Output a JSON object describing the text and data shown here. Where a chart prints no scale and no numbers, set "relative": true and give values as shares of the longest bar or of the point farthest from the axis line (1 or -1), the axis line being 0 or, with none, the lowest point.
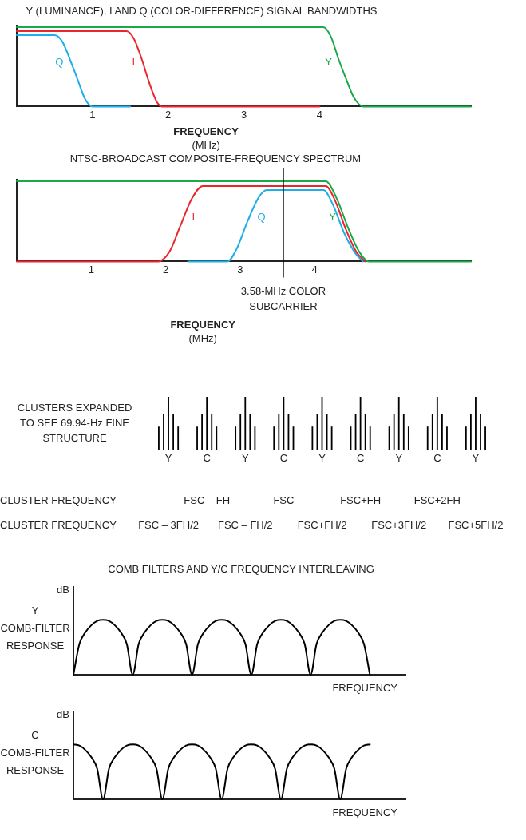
{
  "chart_data": [
    {
      "type": "line",
      "title": "Y (LUMINANCE), I AND Q (COLOR-DIFFERENCE) SIGNAL BANDWIDTHS",
      "xlabel": "FREQUENCY (MHz)",
      "relative": true,
      "marker": "none",
      "tick_labels": "x",
      "xlim": [
        0,
        6
      ],
      "xticks": [
        1,
        2,
        3,
        4
      ],
      "series": [
        {
          "name": "Q",
          "color": "#1eaee8",
          "x": [
            0,
            0.5,
            0.6,
            0.7,
            0.8,
            0.9,
            1.0,
            1.5
          ],
          "values": [
            0.9,
            0.9,
            0.82,
            0.6,
            0.35,
            0.1,
            0,
            0
          ]
        },
        {
          "name": "I",
          "color": "#e8282d",
          "x": [
            0,
            1.45,
            1.55,
            1.65,
            1.75,
            1.85,
            1.92,
            4.0
          ],
          "values": [
            0.95,
            0.95,
            0.85,
            0.6,
            0.3,
            0.06,
            0,
            0
          ]
        },
        {
          "name": "Y",
          "color": "#1aa84a",
          "x": [
            0,
            4.05,
            4.15,
            4.25,
            4.35,
            4.45,
            4.58,
            6
          ],
          "values": [
            1,
            1,
            0.88,
            0.6,
            0.35,
            0.12,
            0,
            0
          ]
        }
      ]
    },
    {
      "type": "line",
      "title": "NTSC-BROADCAST COMPOSITE-FREQUENCY SPECTRUM",
      "xlabel": "FREQUENCY (MHz)",
      "relative": true,
      "marker": "none",
      "tick_labels": "x",
      "xlim": [
        0,
        6.1
      ],
      "xticks": [
        1,
        2,
        3,
        4
      ],
      "ref_lines": [
        {
          "axis": "x",
          "value": 3.58,
          "label": "3.58-MHz COLOR SUBCARRIER",
          "color": "#000000"
        }
      ],
      "series": [
        {
          "name": "Y",
          "color": "#1aa84a",
          "x": [
            0,
            4.15,
            4.3,
            4.45,
            4.6,
            4.73,
            6.1
          ],
          "values": [
            1,
            1,
            0.78,
            0.42,
            0.12,
            0,
            0
          ]
        },
        {
          "name": "I",
          "color": "#e8282d",
          "x": [
            0,
            1.9,
            2.05,
            2.2,
            2.35,
            2.5,
            4.15,
            4.28,
            4.42,
            4.56,
            4.68
          ],
          "values": [
            0,
            0,
            0.12,
            0.45,
            0.78,
            0.94,
            0.94,
            0.75,
            0.4,
            0.12,
            0
          ]
        },
        {
          "name": "Q",
          "color": "#1eaee8",
          "x": [
            2.3,
            2.83,
            2.95,
            3.1,
            3.25,
            3.36,
            4.12,
            4.25,
            4.4,
            4.55,
            4.65
          ],
          "values": [
            0,
            0,
            0.15,
            0.5,
            0.8,
            0.89,
            0.89,
            0.7,
            0.35,
            0.1,
            0
          ]
        }
      ]
    },
    {
      "type": "bar",
      "ylabel": "CLUSTERS EXPANDED TO SEE 69.94-Hz FINE STRUCTURE",
      "relative": true,
      "tick_labels": "x",
      "categories": [
        "Y",
        "C",
        "Y",
        "C",
        "Y",
        "C",
        "Y",
        "C",
        "Y"
      ],
      "annotations": [
        "CLUSTER FREQUENCY",
        "FSC – FH",
        "FSC",
        "FSC+FH",
        "FSC+2FH",
        "CLUSTER FREQUENCY",
        "FSC – 3FH/2",
        "FSC – FH/2",
        "FSC+FH/2",
        "FSC+3FH/2",
        "FSC+5FH/2"
      ],
      "series": [
        {
          "color": "#000000",
          "values": [
            0.44,
            0.44,
            0.44,
            0.44,
            0.44,
            0.44,
            0.44,
            0.44,
            0.44
          ]
        },
        {
          "color": "#000000",
          "values": [
            0.67,
            0.67,
            0.67,
            0.67,
            0.67,
            0.67,
            0.67,
            0.67,
            0.67
          ]
        },
        {
          "color": "#000000",
          "values": [
            1,
            1,
            1,
            1,
            1,
            1,
            1,
            1,
            1
          ]
        },
        {
          "color": "#000000",
          "values": [
            0.67,
            0.67,
            0.67,
            0.67,
            0.67,
            0.67,
            0.67,
            0.67,
            0.67
          ]
        },
        {
          "color": "#000000",
          "values": [
            0.44,
            0.44,
            0.44,
            0.44,
            0.44,
            0.44,
            0.44,
            0.44,
            0.44
          ]
        }
      ]
    },
    {
      "type": "line",
      "title": "COMB FILTERS AND Y/C FREQUENCY INTERLEAVING",
      "xlabel": "FREQUENCY",
      "ylabel": "dB",
      "relative": true,
      "marker": "none",
      "tick_labels": false,
      "annotations": [
        "Y COMB-FILTER RESPONSE"
      ],
      "categories": [
        null,
        null,
        null,
        null,
        null,
        null,
        null,
        null,
        null,
        null,
        null,
        null,
        null,
        null,
        null,
        null,
        null,
        null,
        null,
        null,
        null,
        null,
        null,
        null,
        null,
        null,
        null,
        null,
        null,
        null,
        null,
        null,
        null,
        null,
        null,
        null,
        null,
        null,
        null,
        null,
        null,
        null,
        null,
        null,
        null,
        null,
        null,
        null,
        null,
        null,
        null,
        null,
        null,
        null,
        null,
        null,
        null
      ],
      "series": [
        {
          "color": "#000000",
          "values": [
            0,
            0.56,
            0.77,
            0.9,
            0.98,
            1,
            0.98,
            0.9,
            0.77,
            0.56,
            0,
            0.56,
            0.77,
            0.9,
            0.98,
            1,
            0.98,
            0.9,
            0.77,
            0.56,
            0,
            0.56,
            0.77,
            0.9,
            0.98,
            1,
            0.98,
            0.9,
            0.77,
            0.56,
            0,
            0.56,
            0.77,
            0.9,
            0.98,
            1,
            0.98,
            0.9,
            0.77,
            0.56,
            0,
            0.56,
            0.77,
            0.9,
            0.98,
            1,
            0.98,
            0.9,
            0.77,
            0.56,
            0,
            null,
            null,
            null,
            null,
            null,
            null
          ]
        }
      ]
    },
    {
      "type": "line",
      "xlabel": "FREQUENCY",
      "ylabel": "dB",
      "relative": true,
      "marker": "none",
      "tick_labels": false,
      "annotations": [
        "C COMB-FILTER RESPONSE"
      ],
      "categories": [
        null,
        null,
        null,
        null,
        null,
        null,
        null,
        null,
        null,
        null,
        null,
        null,
        null,
        null,
        null,
        null,
        null,
        null,
        null,
        null,
        null,
        null,
        null,
        null,
        null,
        null,
        null,
        null,
        null,
        null,
        null,
        null,
        null,
        null,
        null,
        null,
        null,
        null,
        null,
        null,
        null,
        null,
        null,
        null,
        null,
        null,
        null,
        null,
        null,
        null,
        null,
        null,
        null,
        null,
        null,
        null,
        null
      ],
      "series": [
        {
          "color": "#000000",
          "values": [
            1,
            0.98,
            0.9,
            0.77,
            0.56,
            0,
            0.56,
            0.77,
            0.9,
            0.98,
            1,
            0.98,
            0.9,
            0.77,
            0.56,
            0,
            0.56,
            0.77,
            0.9,
            0.98,
            1,
            0.98,
            0.9,
            0.77,
            0.56,
            0,
            0.56,
            0.77,
            0.9,
            0.98,
            1,
            0.98,
            0.9,
            0.77,
            0.56,
            0,
            0.56,
            0.77,
            0.9,
            0.98,
            1,
            0.98,
            0.9,
            0.77,
            0.56,
            0,
            0.56,
            0.77,
            0.9,
            0.98,
            1,
            null,
            null,
            null,
            null,
            null,
            null
          ]
        }
      ]
    }
  ]
}
